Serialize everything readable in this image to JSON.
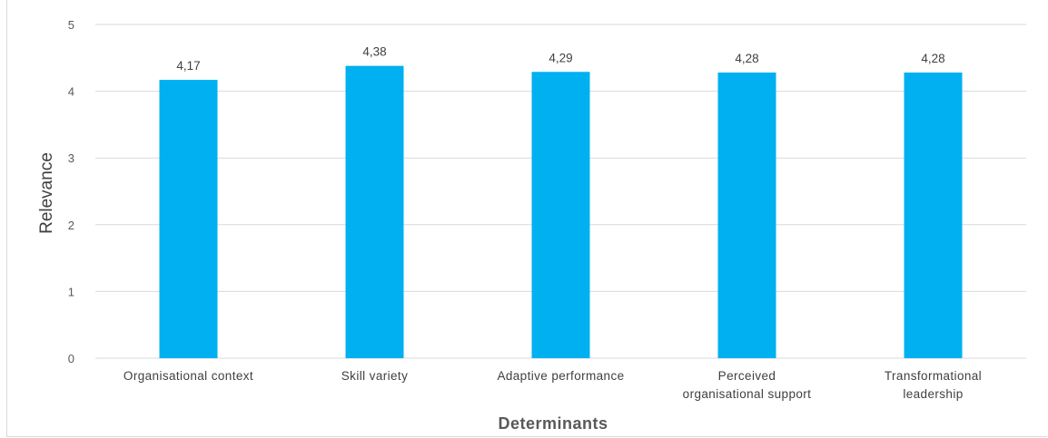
{
  "chart_data": {
    "type": "bar",
    "categories": [
      "Organisational context",
      "Skill variety",
      "Adaptive performance",
      "Perceived organisational support",
      "Transformational leadership"
    ],
    "category_lines": [
      [
        "Organisational context"
      ],
      [
        "Skill variety"
      ],
      [
        "Adaptive performance"
      ],
      [
        "Perceived",
        "organisational support"
      ],
      [
        "Transformational",
        "leadership"
      ]
    ],
    "values": [
      4.17,
      4.38,
      4.29,
      4.28,
      4.28
    ],
    "value_labels": [
      "4,17",
      "4,38",
      "4,29",
      "4,28",
      "4,28"
    ],
    "xlabel": "Determinants",
    "ylabel": "Relevance",
    "ylim": [
      0,
      5
    ],
    "yticks": [
      "0",
      "1",
      "2",
      "3",
      "4",
      "5"
    ],
    "grid": true,
    "bar_color": "#00B0F0",
    "gridline_color": "#d9d9d9"
  }
}
